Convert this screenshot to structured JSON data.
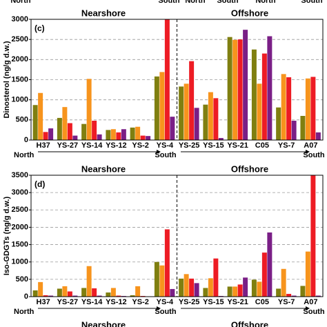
{
  "header_labels": [
    "North",
    "South",
    "North",
    "South",
    "North",
    "South"
  ],
  "footer_labels": [
    "Nearshore",
    "Offshore"
  ],
  "chart_data": [
    {
      "type": "bar",
      "ylabel": "Dinosterol (ng/g d.w.)",
      "annotations": [
        "(c)",
        "Nearshore",
        "Offshore",
        "North",
        "South",
        "South"
      ],
      "categories": [
        "H37",
        "YS-27",
        "YS-14",
        "YS-12",
        "YS-2",
        "YS-4",
        "YS-25",
        "YS-15",
        "YS-21",
        "C05",
        "YS-7",
        "A07"
      ],
      "series": [
        {
          "color": "#7f7f10",
          "values": [
            870,
            550,
            400,
            250,
            310,
            1580,
            1330,
            880,
            2560,
            2250,
            810,
            600
          ]
        },
        {
          "color": "#f7941d",
          "values": [
            1170,
            820,
            1520,
            270,
            330,
            1690,
            1400,
            1190,
            2490,
            1400,
            1640,
            1530
          ]
        },
        {
          "color": "#ed1c24",
          "values": [
            200,
            420,
            480,
            190,
            110,
            3000,
            1960,
            1040,
            2500,
            2150,
            1560,
            1570
          ]
        },
        {
          "color": "#7a1f86",
          "values": [
            290,
            110,
            140,
            270,
            100,
            580,
            800,
            50,
            2740,
            2580,
            480,
            190
          ]
        }
      ],
      "ylim": [
        0,
        3000
      ],
      "yticks": [
        0,
        500,
        1000,
        1500,
        2000,
        2500,
        3000
      ],
      "grid": true
    },
    {
      "type": "bar",
      "ylabel": "Iso-GDGTs (ng/g d.w.)",
      "annotations": [
        "(d)",
        "Nearshore",
        "Offshore",
        "North",
        "South",
        "South"
      ],
      "categories": [
        "H37",
        "YS-27",
        "YS-14",
        "YS-12",
        "YS-2",
        "YS-4",
        "YS-25",
        "YS-15",
        "YS-21",
        "C05",
        "YS-7",
        "A07"
      ],
      "series": [
        {
          "color": "#7f7f10",
          "values": [
            180,
            230,
            250,
            120,
            40,
            1000,
            520,
            250,
            290,
            490,
            230,
            310
          ]
        },
        {
          "color": "#f7941d",
          "values": [
            420,
            300,
            880,
            250,
            300,
            900,
            650,
            530,
            290,
            430,
            800,
            1300
          ]
        },
        {
          "color": "#ed1c24",
          "values": [
            40,
            150,
            240,
            30,
            20,
            1940,
            520,
            1100,
            350,
            1270,
            80,
            3500
          ]
        },
        {
          "color": "#7a1f86",
          "values": [
            30,
            30,
            30,
            20,
            10,
            220,
            390,
            20,
            550,
            1850,
            30,
            30
          ]
        }
      ],
      "ylim": [
        0,
        3500
      ],
      "yticks": [
        0,
        500,
        1000,
        1500,
        2000,
        2500,
        3000,
        3500
      ],
      "grid": true
    }
  ]
}
